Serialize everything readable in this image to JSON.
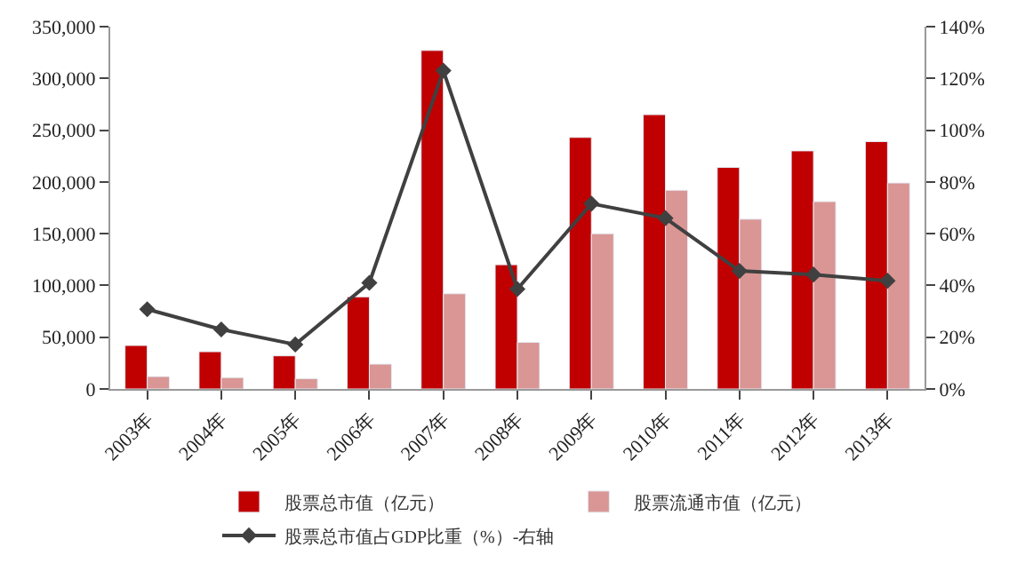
{
  "chart_data": {
    "type": "bar",
    "categories": [
      "2003年",
      "2004年",
      "2005年",
      "2006年",
      "2007年",
      "2008年",
      "2009年",
      "2010年",
      "2011年",
      "2012年",
      "2013年"
    ],
    "series": [
      {
        "name": "股票总市值（亿元）",
        "color": "#c00000",
        "values": [
          42000,
          36000,
          32000,
          89000,
          327000,
          120000,
          243000,
          265000,
          214000,
          230000,
          239000
        ]
      },
      {
        "name": "股票流通市值（亿元）",
        "color": "#d99694",
        "values": [
          12000,
          11000,
          10000,
          24000,
          92000,
          45000,
          150000,
          192000,
          164000,
          181000,
          199000
        ]
      },
      {
        "name": "股票总市值占GDP比重（%）-右轴",
        "color": "#404040",
        "type": "line",
        "axis": "y2",
        "marker": "diamond",
        "values": [
          30.8,
          23,
          17.2,
          41,
          123,
          38.6,
          71.6,
          66,
          45.6,
          44.2,
          41.8
        ]
      }
    ],
    "ylim": [
      0,
      350000
    ],
    "yticks": [
      {
        "value": 0,
        "label": "0"
      },
      {
        "value": 50000,
        "label": "50,000"
      },
      {
        "value": 100000,
        "label": "100,000"
      },
      {
        "value": 150000,
        "label": "150,000"
      },
      {
        "value": 200000,
        "label": "200,000"
      },
      {
        "value": 250000,
        "label": "250,000"
      },
      {
        "value": 300000,
        "label": "300,000"
      },
      {
        "value": 350000,
        "label": "350,000"
      }
    ],
    "y2lim": [
      0,
      140
    ],
    "y2ticks": [
      {
        "value": 0,
        "label": "0%"
      },
      {
        "value": 20,
        "label": "20%"
      },
      {
        "value": 40,
        "label": "40%"
      },
      {
        "value": 60,
        "label": "60%"
      },
      {
        "value": 80,
        "label": "80%"
      },
      {
        "value": 100,
        "label": "100%"
      },
      {
        "value": 120,
        "label": "120%"
      },
      {
        "value": 140,
        "label": "140%"
      }
    ],
    "legend": "bottom"
  }
}
